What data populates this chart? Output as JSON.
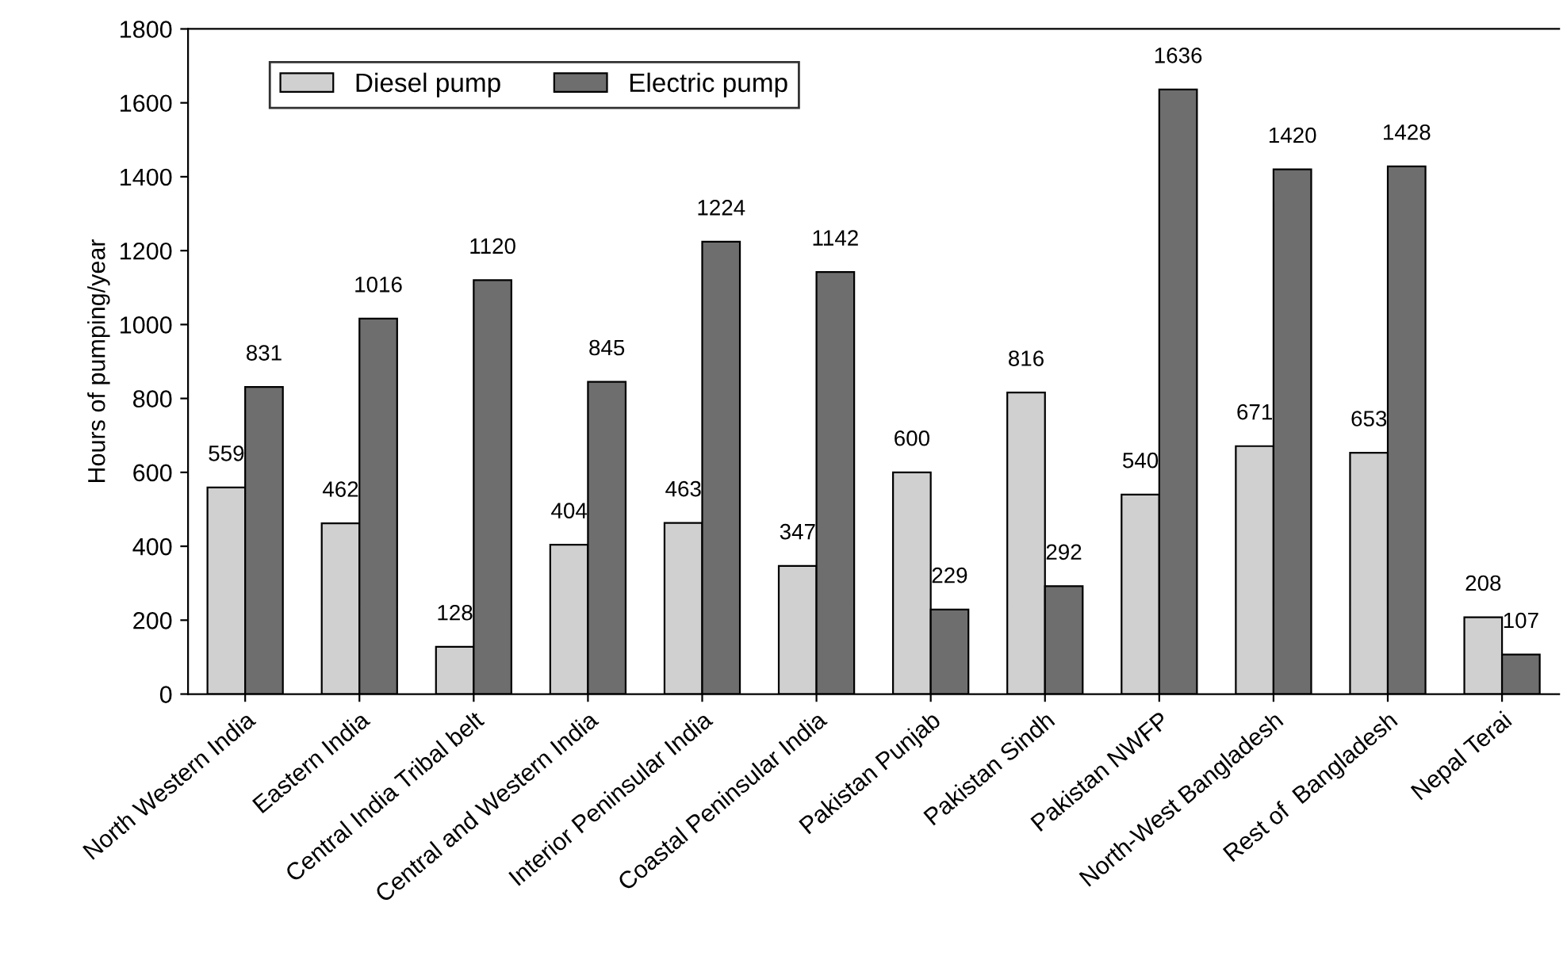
{
  "chart_data": {
    "type": "bar",
    "ylabel": "Hours of pumping/year",
    "categories": [
      "North Western India",
      "Eastern India",
      "Central India Tribal belt",
      "Central and Western India",
      "Interior Peninsular India",
      "Coastal Peninsular India",
      "Pakistan Punjab",
      "Pakistan Sindh",
      "Pakistan NWFP",
      "North-West Bangladesh",
      "Rest of  Bangladesh",
      "Nepal Terai"
    ],
    "series": [
      {
        "name": "Diesel pump",
        "color": "#d0d0d0",
        "values": [
          559,
          462,
          128,
          404,
          463,
          347,
          600,
          816,
          540,
          671,
          653,
          208
        ]
      },
      {
        "name": "Electric pump",
        "color": "#6e6e6e",
        "values": [
          831,
          1016,
          1120,
          845,
          1224,
          1142,
          229,
          292,
          1636,
          1420,
          1428,
          107
        ]
      }
    ],
    "ylim": [
      0,
      1800
    ],
    "yticks": [
      0,
      200,
      400,
      600,
      800,
      1000,
      1200,
      1400,
      1600,
      1800
    ],
    "data_labels": true,
    "legend": "top left",
    "grid": false
  }
}
